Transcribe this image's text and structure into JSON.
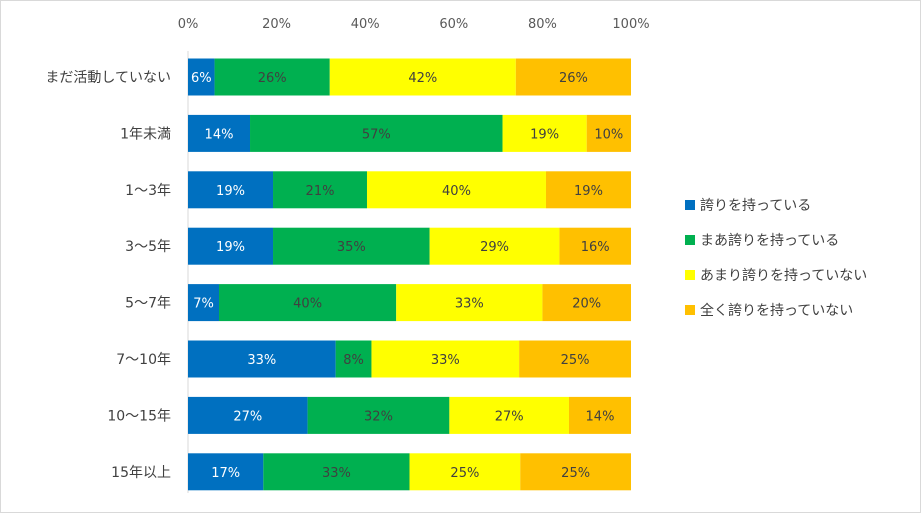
{
  "chart_data": {
    "type": "bar",
    "orientation": "horizontal",
    "stacked": "percent",
    "categories": [
      "まだ活動していない",
      "1年未満",
      "1～3年",
      "3～5年",
      "5～7年",
      "7～10年",
      "10～15年",
      "15年以上"
    ],
    "series": [
      {
        "name": "誇りを持っている",
        "color": "#0070C0",
        "label_color": "#ffffff",
        "values": [
          6,
          14,
          19,
          19,
          7,
          33,
          27,
          17
        ]
      },
      {
        "name": "まあ誇りを持っている",
        "color": "#00B050",
        "label_color": "#404040",
        "values": [
          26,
          57,
          21,
          35,
          40,
          8,
          32,
          33
        ]
      },
      {
        "name": "あまり誇りを持っていない",
        "color": "#FFFF00",
        "label_color": "#404040",
        "values": [
          42,
          19,
          40,
          29,
          33,
          33,
          27,
          25
        ]
      },
      {
        "name": "全く誇りを持っていない",
        "color": "#FFC000",
        "label_color": "#404040",
        "values": [
          26,
          10,
          19,
          16,
          20,
          25,
          14,
          25
        ]
      }
    ],
    "x_ticks": [
      "0%",
      "20%",
      "40%",
      "60%",
      "80%",
      "100%"
    ],
    "xlim": [
      0,
      100
    ],
    "x_axis_position": "top",
    "grid": false,
    "legend": "right"
  }
}
